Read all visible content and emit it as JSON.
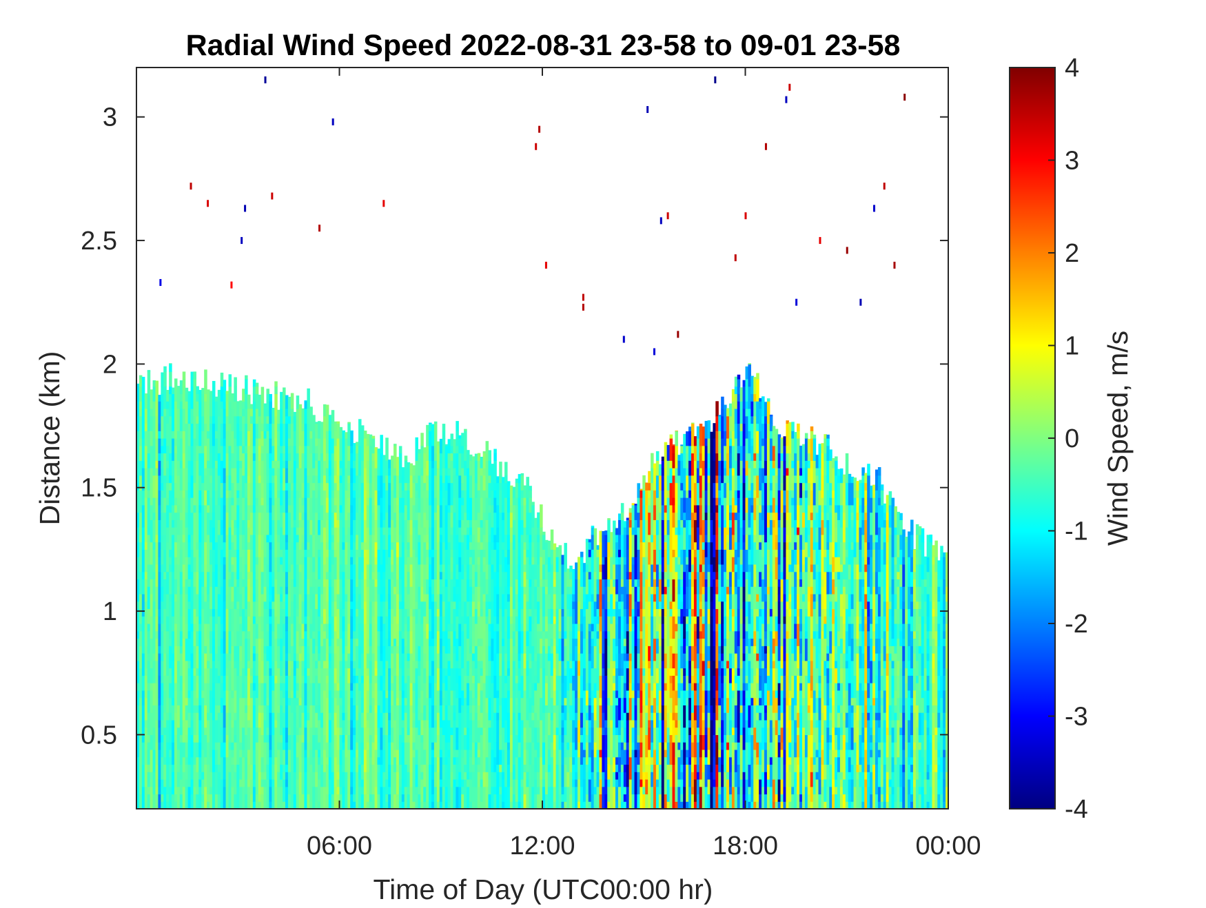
{
  "chart_data": {
    "type": "heatmap",
    "title": "Radial Wind Speed 2022-08-31 23-58 to 09-01 23-58",
    "xlabel": "Time of Day (UTC00:00 hr)",
    "ylabel": "Distance (km)",
    "colorbar_label": "Wind Speed, m/s",
    "colormap": "jet",
    "xlim_hours": [
      0,
      24
    ],
    "ylim": [
      0.2,
      3.2
    ],
    "clim": [
      -4,
      4
    ],
    "x_ticks": [
      {
        "hour": 6,
        "label": "06:00"
      },
      {
        "hour": 12,
        "label": "12:00"
      },
      {
        "hour": 18,
        "label": "18:00"
      },
      {
        "hour": 24,
        "label": "00:00"
      }
    ],
    "y_ticks": [
      {
        "value": 0.5,
        "label": "0.5"
      },
      {
        "value": 1,
        "label": "1"
      },
      {
        "value": 1.5,
        "label": "1.5"
      },
      {
        "value": 2,
        "label": "2"
      },
      {
        "value": 2.5,
        "label": "2.5"
      },
      {
        "value": 3,
        "label": "3"
      }
    ],
    "colorbar_ticks": [
      {
        "value": 4,
        "label": "4"
      },
      {
        "value": 3,
        "label": "3"
      },
      {
        "value": 2,
        "label": "2"
      },
      {
        "value": 1,
        "label": "1"
      },
      {
        "value": 0,
        "label": "0"
      },
      {
        "value": -1,
        "label": "-1"
      },
      {
        "value": -2,
        "label": "-2"
      },
      {
        "value": -3,
        "label": "-3"
      },
      {
        "value": -4,
        "label": "-4"
      }
    ],
    "data_top_profile_km": [
      {
        "hour": 0,
        "top": 1.9
      },
      {
        "hour": 1,
        "top": 1.95
      },
      {
        "hour": 2,
        "top": 1.92
      },
      {
        "hour": 3,
        "top": 1.9
      },
      {
        "hour": 4,
        "top": 1.88
      },
      {
        "hour": 5,
        "top": 1.85
      },
      {
        "hour": 6,
        "top": 1.75
      },
      {
        "hour": 7,
        "top": 1.7
      },
      {
        "hour": 8,
        "top": 1.6
      },
      {
        "hour": 8.5,
        "top": 1.72
      },
      {
        "hour": 9.5,
        "top": 1.72
      },
      {
        "hour": 10.5,
        "top": 1.62
      },
      {
        "hour": 11.5,
        "top": 1.5
      },
      {
        "hour": 12.3,
        "top": 1.3
      },
      {
        "hour": 12.9,
        "top": 1.18
      },
      {
        "hour": 13.5,
        "top": 1.3
      },
      {
        "hour": 14.5,
        "top": 1.42
      },
      {
        "hour": 15.5,
        "top": 1.65
      },
      {
        "hour": 16.5,
        "top": 1.72
      },
      {
        "hour": 17.5,
        "top": 1.85
      },
      {
        "hour": 18,
        "top": 2.0
      },
      {
        "hour": 19,
        "top": 1.75
      },
      {
        "hour": 20,
        "top": 1.7
      },
      {
        "hour": 21,
        "top": 1.6
      },
      {
        "hour": 22,
        "top": 1.52
      },
      {
        "hour": 23,
        "top": 1.3
      },
      {
        "hour": 24,
        "top": 1.2
      }
    ],
    "variability_profile": [
      {
        "hour": 0,
        "mean": -0.5,
        "std": 0.4
      },
      {
        "hour": 6,
        "mean": -0.4,
        "std": 0.4
      },
      {
        "hour": 12,
        "mean": -0.5,
        "std": 0.45
      },
      {
        "hour": 12.8,
        "mean": -0.6,
        "std": 0.7
      },
      {
        "hour": 14,
        "mean": -0.5,
        "std": 1.5
      },
      {
        "hour": 17,
        "mean": -0.3,
        "std": 2.0
      },
      {
        "hour": 19,
        "mean": -0.4,
        "std": 1.6
      },
      {
        "hour": 21.5,
        "mean": -0.6,
        "std": 1.0
      },
      {
        "hour": 23,
        "mean": -0.5,
        "std": 0.6
      },
      {
        "hour": 24,
        "mean": -0.5,
        "std": 0.45
      }
    ],
    "sparse_points": [
      {
        "hour": 0.7,
        "km": 2.33,
        "value": -3.2
      },
      {
        "hour": 1.6,
        "km": 2.72,
        "value": 3.5
      },
      {
        "hour": 2.1,
        "km": 2.65,
        "value": 3.3
      },
      {
        "hour": 2.8,
        "km": 2.32,
        "value": 3.0
      },
      {
        "hour": 3.1,
        "km": 2.5,
        "value": -3.5
      },
      {
        "hour": 3.2,
        "km": 2.63,
        "value": -3.6
      },
      {
        "hour": 3.8,
        "km": 3.15,
        "value": -3.8
      },
      {
        "hour": 4.0,
        "km": 2.68,
        "value": 3.4
      },
      {
        "hour": 5.4,
        "km": 2.55,
        "value": 3.6
      },
      {
        "hour": 5.8,
        "km": 2.98,
        "value": -3.5
      },
      {
        "hour": 7.3,
        "km": 2.65,
        "value": 3.2
      },
      {
        "hour": 11.8,
        "km": 2.88,
        "value": 3.4
      },
      {
        "hour": 11.9,
        "km": 2.95,
        "value": 3.6
      },
      {
        "hour": 12.1,
        "km": 2.4,
        "value": 3.2
      },
      {
        "hour": 13.2,
        "km": 2.27,
        "value": 3.5
      },
      {
        "hour": 13.2,
        "km": 2.23,
        "value": 3.6
      },
      {
        "hour": 14.4,
        "km": 2.1,
        "value": -3.4
      },
      {
        "hour": 15.1,
        "km": 3.03,
        "value": -3.6
      },
      {
        "hour": 15.3,
        "km": 2.05,
        "value": -3.3
      },
      {
        "hour": 15.5,
        "km": 2.58,
        "value": -3.5
      },
      {
        "hour": 15.7,
        "km": 2.6,
        "value": 3.4
      },
      {
        "hour": 16.0,
        "km": 2.12,
        "value": 3.8
      },
      {
        "hour": 17.1,
        "km": 3.15,
        "value": -3.9
      },
      {
        "hour": 17.7,
        "km": 2.43,
        "value": 3.5
      },
      {
        "hour": 18.0,
        "km": 2.6,
        "value": 3.3
      },
      {
        "hour": 18.6,
        "km": 2.88,
        "value": 3.6
      },
      {
        "hour": 19.2,
        "km": 3.07,
        "value": -3.5
      },
      {
        "hour": 19.3,
        "km": 3.12,
        "value": 3.4
      },
      {
        "hour": 19.5,
        "km": 2.25,
        "value": -3.3
      },
      {
        "hour": 20.2,
        "km": 2.5,
        "value": 3.2
      },
      {
        "hour": 21.0,
        "km": 2.46,
        "value": 3.8
      },
      {
        "hour": 21.4,
        "km": 2.25,
        "value": -3.6
      },
      {
        "hour": 21.8,
        "km": 2.63,
        "value": -3.4
      },
      {
        "hour": 22.1,
        "km": 2.72,
        "value": 3.5
      },
      {
        "hour": 22.4,
        "km": 2.4,
        "value": 3.7
      },
      {
        "hour": 22.7,
        "km": 3.08,
        "value": 3.9
      }
    ]
  }
}
